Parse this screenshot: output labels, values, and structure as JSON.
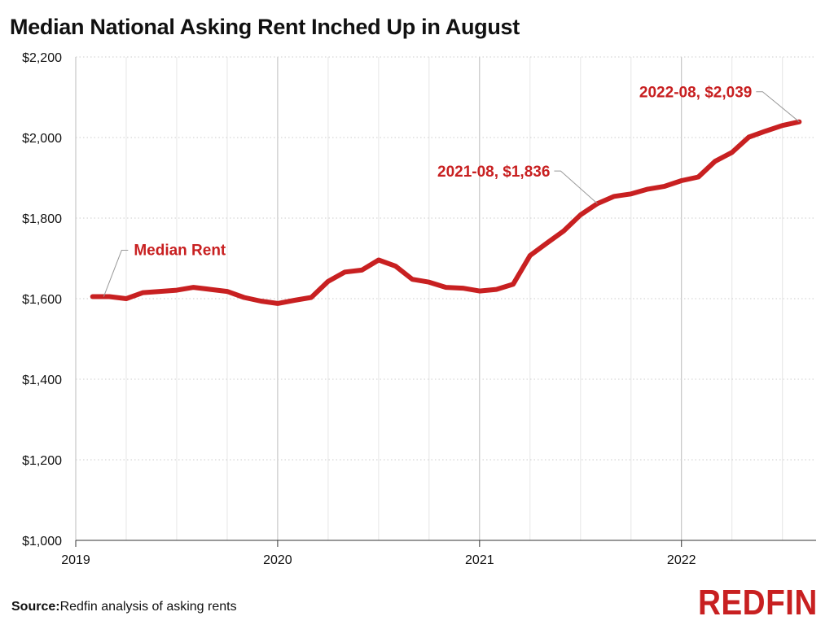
{
  "page": {
    "title": "Median National Asking Rent Inched Up in August",
    "source_label": "Source:",
    "source_text": "Redfin analysis of asking rents",
    "logo_text": "REDFIN"
  },
  "colors": {
    "line": "#c82021",
    "grid": "#cccccc",
    "year_grid": "#bbbbbb",
    "annotation_text": "#c82021",
    "leader": "#999999"
  },
  "chart_data": {
    "type": "line",
    "title": "Median National Asking Rent Inched Up in August",
    "xlabel": "",
    "ylabel": "",
    "ylim": [
      1000,
      2200
    ],
    "yticks": [
      1000,
      1200,
      1400,
      1600,
      1800,
      2000,
      2200
    ],
    "ytick_labels": [
      "$1,000",
      "$1,200",
      "$1,400",
      "$1,600",
      "$1,800",
      "$2,000",
      "$2,200"
    ],
    "xlim": [
      "2019-01",
      "2022-09"
    ],
    "xticks": [
      "2019-01",
      "2020-01",
      "2021-01",
      "2022-01"
    ],
    "xtick_labels": [
      "2019",
      "2020",
      "2021",
      "2022"
    ],
    "grid": true,
    "series": [
      {
        "name": "Median Rent",
        "x": [
          "2019-02",
          "2019-03",
          "2019-04",
          "2019-05",
          "2019-06",
          "2019-07",
          "2019-08",
          "2019-09",
          "2019-10",
          "2019-11",
          "2019-12",
          "2020-01",
          "2020-02",
          "2020-03",
          "2020-04",
          "2020-05",
          "2020-06",
          "2020-07",
          "2020-08",
          "2020-09",
          "2020-10",
          "2020-11",
          "2020-12",
          "2021-01",
          "2021-02",
          "2021-03",
          "2021-04",
          "2021-05",
          "2021-06",
          "2021-07",
          "2021-08",
          "2021-09",
          "2021-10",
          "2021-11",
          "2021-12",
          "2022-01",
          "2022-02",
          "2022-03",
          "2022-04",
          "2022-05",
          "2022-06",
          "2022-07",
          "2022-08"
        ],
        "values": [
          1605,
          1605,
          1600,
          1615,
          1618,
          1621,
          1628,
          1623,
          1618,
          1603,
          1594,
          1588,
          1596,
          1603,
          1643,
          1666,
          1671,
          1696,
          1681,
          1648,
          1641,
          1628,
          1626,
          1619,
          1623,
          1636,
          1707,
          1738,
          1768,
          1808,
          1836,
          1854,
          1860,
          1872,
          1879,
          1893,
          1902,
          1941,
          1963,
          2001,
          2016,
          2030,
          2039
        ]
      }
    ],
    "annotations": [
      {
        "text": "Median Rent",
        "x": "2019-03",
        "y": 1605
      },
      {
        "text": "2021-08, $1,836",
        "x": "2021-08",
        "y": 1836
      },
      {
        "text": "2022-08, $2,039",
        "x": "2022-08",
        "y": 2039
      }
    ]
  }
}
